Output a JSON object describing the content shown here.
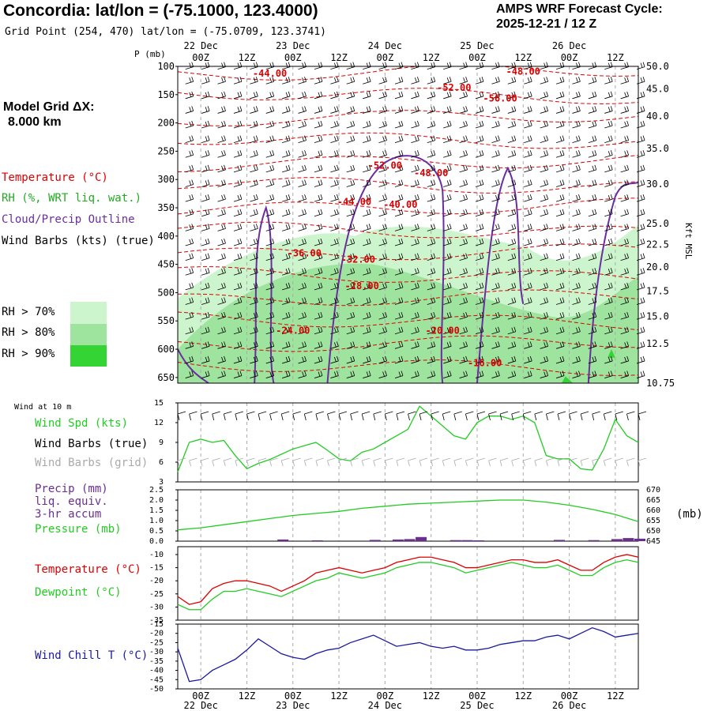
{
  "header": {
    "title": "Concordia:  lat/lon = (-75.1000, 123.4000)",
    "subtitle": "Grid Point (254, 470) lat/lon = (-75.0709, 123.3741)",
    "cycle_line1": "AMPS WRF Forecast Cycle:",
    "cycle_line2": "2025-12-21 / 12  Z",
    "grid_line1": "Model Grid ΔX:",
    "grid_line2": "8.000 km"
  },
  "legend": {
    "temperature": "Temperature (°C)",
    "rh": "RH (%, WRT liq. wat.)",
    "cloud": "Cloud/Precip Outline",
    "wind": "Wind Barbs (kts) (true)",
    "rh70": "RH > 70%",
    "rh80": "RH > 80%",
    "rh90": "RH > 90%",
    "p_label": "P (mb)",
    "kft_label": "Kft MSL"
  },
  "colors": {
    "temp": "#dd0000",
    "cloud": "#6a2ea0",
    "rh70": "#cdf5cd",
    "rh80": "#9ee49e",
    "rh90": "#35d435",
    "wind_speed": "#22cc22",
    "grid_barb": "#aaaaaa",
    "precip": "#6a2e8e",
    "wind_chill": "#1a1aa0"
  },
  "time_axis": {
    "ticks": [
      "00Z",
      "12Z",
      "00Z",
      "12Z",
      "00Z",
      "12Z",
      "00Z",
      "12Z",
      "00Z",
      "12Z"
    ],
    "days": [
      "22 Dec",
      "23 Dec",
      "24 Dec",
      "25 Dec",
      "26 Dec"
    ],
    "start_hour": -6,
    "end_hour": 114
  },
  "chart_data": [
    {
      "type": "area",
      "name": "cross-section",
      "ylabel": "P (mb)",
      "ylim": [
        100,
        660
      ],
      "pressure_ticks": [
        "100",
        "150",
        "200",
        "250",
        "300",
        "350",
        "400",
        "450",
        "500",
        "550",
        "600",
        "650"
      ],
      "height_ticks": [
        {
          "p": 100,
          "label": "50.0"
        },
        {
          "p": 140,
          "label": "45.0"
        },
        {
          "p": 188,
          "label": "40.0"
        },
        {
          "p": 245,
          "label": "35.0"
        },
        {
          "p": 308,
          "label": "30.0"
        },
        {
          "p": 378,
          "label": "25.0"
        },
        {
          "p": 415,
          "label": "22.5"
        },
        {
          "p": 455,
          "label": "20.0"
        },
        {
          "p": 497,
          "label": "17.5"
        },
        {
          "p": 542,
          "label": "15.0"
        },
        {
          "p": 590,
          "label": "12.5"
        },
        {
          "p": 660,
          "label": "10.75"
        }
      ],
      "temperature_labels": [
        {
          "text": "-44.00",
          "t": 18,
          "p": 118
        },
        {
          "text": "-48.00",
          "t": 84,
          "p": 115
        },
        {
          "text": "-52.00",
          "t": 66,
          "p": 143
        },
        {
          "text": "-56.00",
          "t": 78,
          "p": 162
        },
        {
          "text": "-52.00",
          "t": 48,
          "p": 281
        },
        {
          "text": "-48.00",
          "t": 60,
          "p": 294
        },
        {
          "text": "-44.00",
          "t": 40,
          "p": 345
        },
        {
          "text": "-40.00",
          "t": 52,
          "p": 350
        },
        {
          "text": "-36.00",
          "t": 27,
          "p": 436
        },
        {
          "text": "-32.00",
          "t": 41,
          "p": 447
        },
        {
          "text": "-28.00",
          "t": 42,
          "p": 494
        },
        {
          "text": "-24.00",
          "t": 24,
          "p": 573
        },
        {
          "text": "-20.00",
          "t": 63,
          "p": 573
        },
        {
          "text": "-16.00",
          "t": 74,
          "p": 630
        }
      ]
    },
    {
      "type": "line",
      "name": "wind-10m",
      "title": "Wind at 10 m",
      "series_label": "Wind Spd (kts)",
      "barb_label": "Wind Barbs (true)",
      "grid_barb_label": "Wind Barbs (grid)",
      "y_ticks": [
        "15",
        "12",
        "9",
        "6",
        "3"
      ],
      "ylim": [
        3,
        15
      ],
      "x": [
        -6,
        -3,
        0,
        3,
        6,
        9,
        12,
        15,
        18,
        21,
        24,
        27,
        30,
        33,
        36,
        39,
        42,
        45,
        48,
        51,
        54,
        57,
        60,
        63,
        66,
        69,
        72,
        75,
        78,
        81,
        84,
        87,
        90,
        93,
        96,
        99,
        102,
        105,
        108,
        111,
        114
      ],
      "values": [
        4.5,
        9,
        9.5,
        9,
        9.3,
        7,
        5,
        5.8,
        6.4,
        7.2,
        8,
        8.5,
        9,
        7.8,
        6.5,
        6.2,
        7.5,
        8,
        9,
        10,
        11,
        14.5,
        13,
        11.5,
        10,
        9.5,
        12,
        13,
        13,
        12.5,
        13,
        12,
        7,
        6.5,
        6.5,
        5,
        4.8,
        8,
        12.5,
        10,
        9
      ]
    },
    {
      "type": "bar",
      "name": "precip-pressure",
      "precip_label": "Precip (mm)",
      "precip_label2": "liq. equiv.",
      "precip_label3": "3-hr accum",
      "pressure_label": "Pressure (mb)",
      "unit_label": "(mb)",
      "left_ticks": [
        "2.5",
        "2.0",
        "1.5",
        "1.0",
        "0.5",
        "0.0"
      ],
      "right_ticks": [
        "670",
        "665",
        "660",
        "655",
        "650",
        "645"
      ],
      "precip_ylim": [
        0,
        2.5
      ],
      "pressure_ylim": [
        645,
        670
      ],
      "precip_x": [
        21,
        30,
        45,
        51,
        54,
        57,
        66,
        69,
        72,
        93,
        102,
        108,
        111,
        114
      ],
      "precip_values": [
        0.08,
        0.04,
        0.06,
        0.08,
        0.1,
        0.2,
        0.05,
        0.05,
        0.04,
        0.06,
        0.05,
        0.1,
        0.15,
        0.12
      ],
      "pressure_x": [
        -6,
        0,
        6,
        12,
        18,
        24,
        30,
        36,
        42,
        48,
        54,
        60,
        66,
        72,
        78,
        84,
        90,
        96,
        102,
        108,
        114
      ],
      "pressure_values": [
        650.5,
        651.5,
        653,
        654.5,
        656,
        657.5,
        658.5,
        659.5,
        661,
        662,
        663,
        663.5,
        664,
        664.5,
        665,
        665,
        664,
        662.5,
        660.5,
        658,
        654.5
      ]
    },
    {
      "type": "line",
      "name": "temperature-dewpoint",
      "temp_label": "Temperature (°C)",
      "dew_label": "Dewpoint (°C)",
      "y_ticks": [
        "-10",
        "-15",
        "-20",
        "-25",
        "-30",
        "-35"
      ],
      "ylim": [
        -35,
        -7
      ],
      "x": [
        -6,
        -3,
        0,
        3,
        6,
        9,
        12,
        15,
        18,
        21,
        24,
        27,
        30,
        33,
        36,
        39,
        42,
        45,
        48,
        51,
        54,
        57,
        60,
        63,
        66,
        69,
        72,
        75,
        78,
        81,
        84,
        87,
        90,
        93,
        96,
        99,
        102,
        105,
        108,
        111,
        114
      ],
      "series": [
        {
          "name": "Temperature",
          "values": [
            -26,
            -29,
            -28,
            -23,
            -21,
            -20,
            -20,
            -21,
            -22,
            -24,
            -22,
            -20,
            -17,
            -16,
            -15,
            -16,
            -17,
            -16,
            -15,
            -13,
            -12,
            -11,
            -11,
            -12,
            -13,
            -15,
            -15,
            -14,
            -13,
            -12,
            -12,
            -13,
            -13,
            -12,
            -14,
            -16,
            -16,
            -13,
            -11,
            -10,
            -11
          ]
        },
        {
          "name": "Dewpoint",
          "values": [
            -29,
            -31,
            -31,
            -27,
            -24,
            -24,
            -23,
            -24,
            -25,
            -26,
            -24,
            -22,
            -20,
            -19,
            -17,
            -18,
            -19,
            -18,
            -17,
            -15,
            -14,
            -13,
            -13,
            -14,
            -15,
            -17,
            -16,
            -15,
            -14,
            -13,
            -14,
            -15,
            -15,
            -14,
            -16,
            -18,
            -18,
            -15,
            -13,
            -12,
            -13
          ]
        }
      ]
    },
    {
      "type": "line",
      "name": "wind-chill",
      "series_label": "Wind Chill T (°C)",
      "y_ticks": [
        "-15",
        "-20",
        "-25",
        "-30",
        "-35",
        "-40",
        "-45",
        "-50"
      ],
      "ylim": [
        -50,
        -15
      ],
      "x": [
        -6,
        -3,
        0,
        3,
        6,
        9,
        12,
        15,
        18,
        21,
        24,
        27,
        30,
        33,
        36,
        39,
        42,
        45,
        48,
        51,
        54,
        57,
        60,
        63,
        66,
        69,
        72,
        75,
        78,
        81,
        84,
        87,
        90,
        93,
        96,
        99,
        102,
        105,
        108,
        111,
        114
      ],
      "values": [
        -28,
        -46,
        -45,
        -40,
        -37,
        -34,
        -29,
        -23,
        -27,
        -31,
        -33,
        -34,
        -31,
        -29,
        -28,
        -25,
        -23,
        -21,
        -24,
        -27,
        -26,
        -25,
        -27,
        -28,
        -27,
        -29,
        -29,
        -28,
        -26,
        -25,
        -24,
        -24,
        -22,
        -21,
        -23,
        -20,
        -17,
        -19,
        -22,
        -21,
        -20
      ]
    }
  ]
}
